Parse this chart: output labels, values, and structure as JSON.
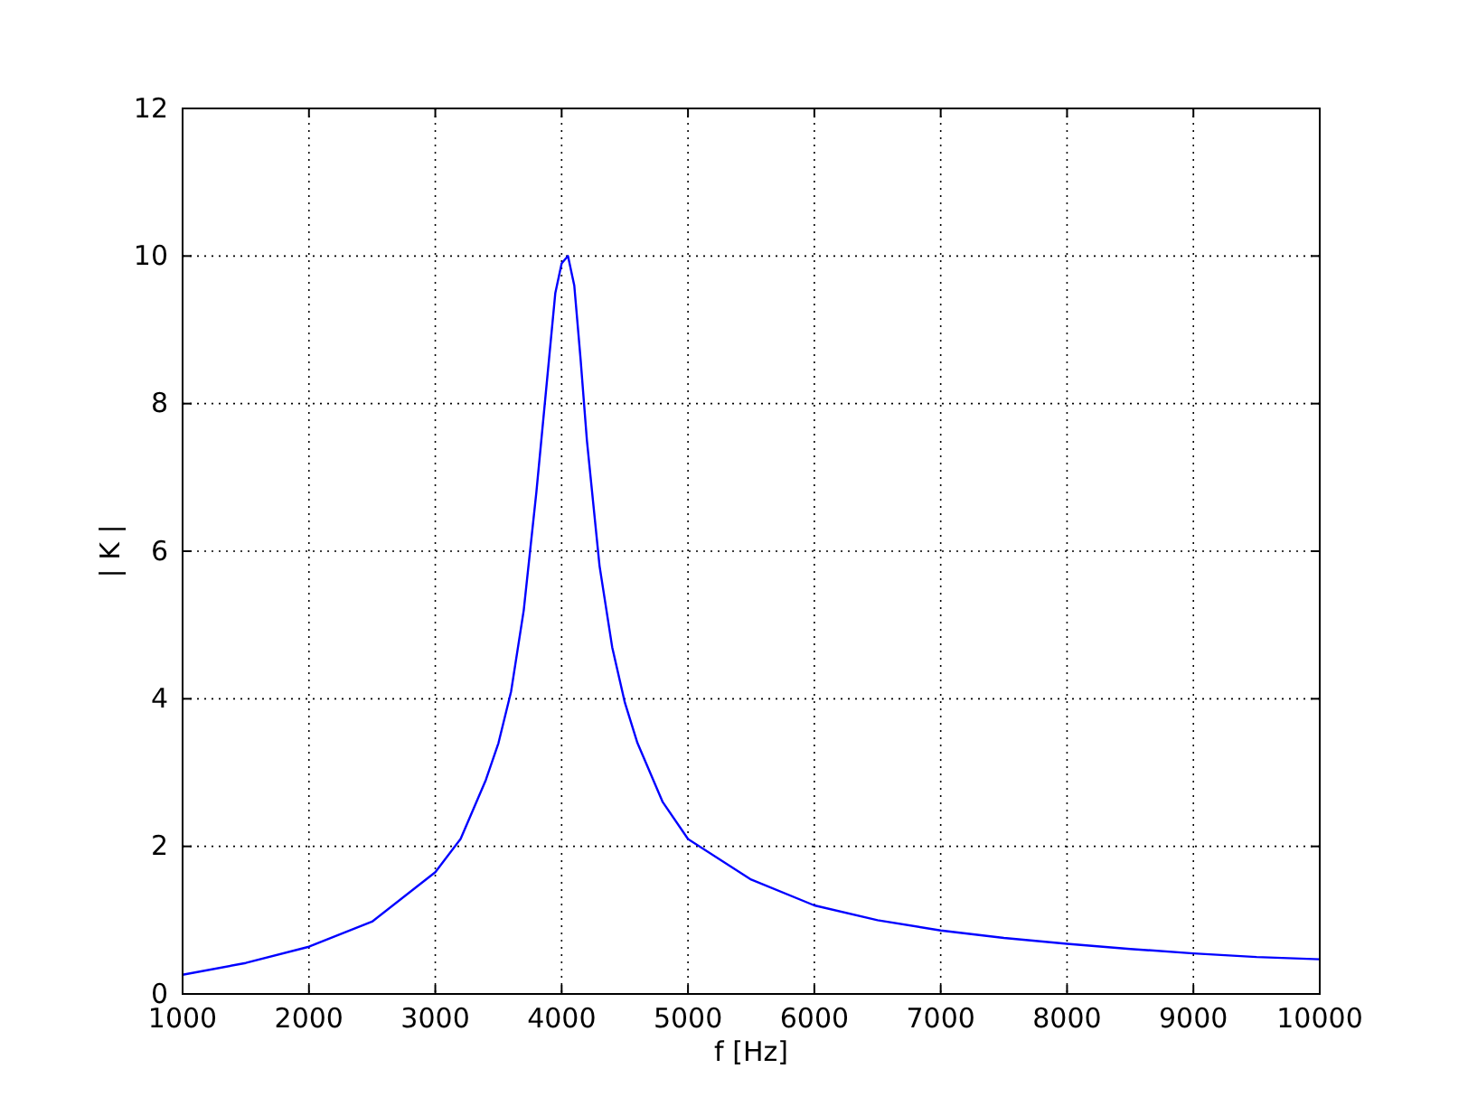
{
  "chart_data": {
    "type": "line",
    "xlabel": "f [Hz]",
    "ylabel": "| K |",
    "x": [
      1000,
      1500,
      2000,
      2500,
      3000,
      3200,
      3400,
      3500,
      3600,
      3700,
      3800,
      3900,
      3950,
      4000,
      4050,
      4100,
      4150,
      4200,
      4300,
      4400,
      4500,
      4600,
      4800,
      5000,
      5500,
      6000,
      6500,
      7000,
      7500,
      8000,
      8500,
      9000,
      9500,
      10000
    ],
    "series": [
      {
        "color": "#0000ff",
        "values": [
          0.26,
          0.42,
          0.64,
          0.98,
          1.65,
          2.1,
          2.9,
          3.4,
          4.1,
          5.2,
          6.8,
          8.6,
          9.5,
          9.9,
          10.0,
          9.6,
          8.6,
          7.5,
          5.8,
          4.7,
          3.95,
          3.4,
          2.6,
          2.1,
          1.55,
          1.2,
          1.0,
          0.86,
          0.76,
          0.68,
          0.61,
          0.55,
          0.5,
          0.47
        ]
      }
    ],
    "xlim": [
      1000,
      10000
    ],
    "xticks": [
      1000,
      2000,
      3000,
      4000,
      5000,
      6000,
      7000,
      8000,
      9000,
      10000
    ],
    "ylim": [
      0,
      12
    ],
    "yticks": [
      0,
      2,
      4,
      6,
      8,
      10,
      12
    ],
    "grid": true,
    "marker": "none",
    "line_style": "solid"
  }
}
